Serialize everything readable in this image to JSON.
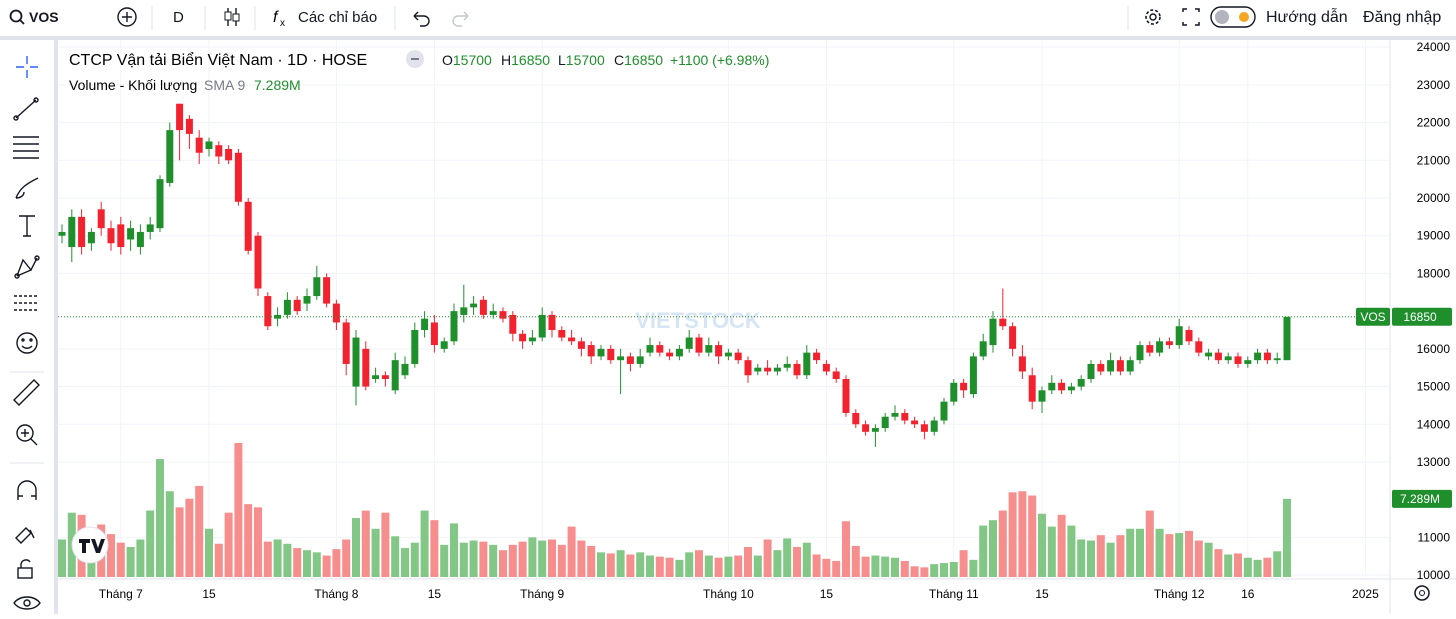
{
  "toolbar": {
    "symbol": "VOS",
    "interval": "D",
    "indicators": "Các chỉ báo",
    "guide": "Hướng dẫn",
    "login": "Đăng nhập"
  },
  "chart_data": {
    "type": "candlestick",
    "title": "CTCP Vận tải Biển Việt Nam · 1D · HOSE",
    "symbol_tag": "VOS",
    "ohlc_labels": [
      "O",
      "H",
      "L",
      "C"
    ],
    "change_label": "+1100 (+6.98%)",
    "watermark": "VIETSTOCK",
    "up_color": "#1f8f2c",
    "down_color": "#f2222f",
    "volume_up_color": "#82c785",
    "volume_down_color": "#f78e8e",
    "open": [
      19000,
      18700,
      19500,
      18800,
      19700,
      19200,
      19300,
      18900,
      18700,
      19100,
      19200,
      20400,
      22500,
      22100,
      21600,
      21300,
      21400,
      21300,
      21200,
      19900,
      19000,
      17400,
      16800,
      16900,
      17300,
      17200,
      17400,
      17900,
      17200,
      16700,
      15000,
      16000,
      15200,
      15300,
      14900,
      15300,
      15600,
      16500,
      16700,
      16000,
      16200,
      16900,
      17100,
      17300,
      16900,
      17000,
      16900,
      16400,
      16200,
      16300,
      16900,
      16500,
      16300,
      16200,
      16100,
      15800,
      16000,
      15700,
      15800,
      15600,
      15900,
      16100,
      15900,
      15800,
      16000,
      16300,
      15900,
      16100,
      15800,
      15900,
      15700,
      15400,
      15500,
      15400,
      15500,
      15600,
      15300,
      15900,
      15600,
      15400,
      15200,
      14300,
      14000,
      13800,
      13900,
      14200,
      14300,
      14100,
      14000,
      13800,
      14100,
      14600,
      15100,
      14800,
      15800,
      16100,
      16800,
      16600,
      15800,
      15300,
      14600,
      14900,
      15100,
      14900,
      15000,
      15200,
      15600,
      15400,
      15700,
      15400,
      15700,
      16100,
      15900,
      16200,
      16100,
      16500,
      16200,
      15800,
      15900,
      15700,
      15800,
      15600,
      15700,
      15900,
      15700,
      15700
    ],
    "high": [
      19300,
      19700,
      19700,
      19200,
      19900,
      19400,
      19500,
      19400,
      19300,
      19500,
      20600,
      22000,
      22500,
      22200,
      21800,
      21600,
      21500,
      21400,
      21300,
      20000,
      19100,
      17500,
      17100,
      17500,
      17400,
      17600,
      18200,
      18000,
      17300,
      16800,
      16500,
      16200,
      15500,
      15400,
      15900,
      15800,
      16700,
      17000,
      16900,
      16300,
      17200,
      17700,
      17400,
      17400,
      17200,
      17100,
      17000,
      16500,
      16500,
      17100,
      17000,
      16600,
      16500,
      16300,
      16200,
      16100,
      16100,
      16000,
      15900,
      16000,
      16300,
      16200,
      16000,
      16100,
      16500,
      16400,
      16300,
      16200,
      16000,
      16000,
      15800,
      15600,
      15700,
      15600,
      15800,
      15700,
      16100,
      16000,
      15700,
      15500,
      15300,
      14400,
      14100,
      14000,
      14300,
      14500,
      14400,
      14200,
      14100,
      14200,
      14700,
      15200,
      15200,
      15900,
      16400,
      17000,
      17600,
      16700,
      16100,
      15500,
      15000,
      15300,
      15200,
      15100,
      15300,
      15700,
      15700,
      15900,
      15800,
      15800,
      16200,
      16200,
      16300,
      16300,
      16800,
      16600,
      16300,
      16000,
      16000,
      15900,
      15900,
      15800,
      16000,
      16000,
      15900,
      16850
    ],
    "low": [
      18800,
      18300,
      18500,
      18600,
      19000,
      18600,
      18500,
      18600,
      18500,
      18900,
      19100,
      20300,
      21000,
      21300,
      20900,
      21100,
      20900,
      20900,
      19800,
      18500,
      17400,
      16500,
      16600,
      16800,
      16900,
      17000,
      17300,
      17100,
      16500,
      15300,
      14500,
      14900,
      15100,
      15000,
      14800,
      15200,
      15500,
      16300,
      15900,
      15900,
      16100,
      16700,
      16900,
      16800,
      16800,
      16700,
      16200,
      16000,
      16100,
      16200,
      16300,
      16200,
      16100,
      15800,
      15600,
      15700,
      15600,
      14800,
      15400,
      15500,
      15800,
      15800,
      15700,
      15700,
      15900,
      15800,
      15800,
      15600,
      15700,
      15600,
      15100,
      15300,
      15300,
      15300,
      15400,
      15200,
      15200,
      15600,
      15300,
      15100,
      14200,
      13900,
      13700,
      13400,
      13800,
      14100,
      14000,
      13900,
      13600,
      13700,
      14000,
      14500,
      14700,
      14700,
      15700,
      15900,
      16500,
      15800,
      15200,
      14400,
      14300,
      14800,
      14800,
      14800,
      14900,
      15100,
      15300,
      15300,
      15300,
      15300,
      15600,
      15800,
      15800,
      16000,
      16000,
      16100,
      15800,
      15700,
      15600,
      15600,
      15500,
      15500,
      15600,
      15600,
      15600,
      15700
    ],
    "close": [
      19100,
      19500,
      18700,
      19100,
      19200,
      18800,
      18700,
      19200,
      19100,
      19300,
      20500,
      21800,
      21800,
      21700,
      21200,
      21500,
      21100,
      21000,
      19900,
      18600,
      17600,
      16600,
      16900,
      17300,
      17000,
      17400,
      17900,
      17200,
      16700,
      15600,
      16300,
      15000,
      15300,
      15200,
      15700,
      15600,
      16500,
      16800,
      16100,
      16200,
      17000,
      17100,
      17200,
      16900,
      17000,
      16800,
      16400,
      16200,
      16300,
      16900,
      16500,
      16300,
      16200,
      16000,
      15800,
      16000,
      15700,
      15800,
      15600,
      15800,
      16100,
      15900,
      15800,
      16000,
      16300,
      15900,
      16100,
      15800,
      15900,
      15700,
      15300,
      15500,
      15400,
      15500,
      15600,
      15300,
      15900,
      15700,
      15400,
      15200,
      14300,
      14000,
      13800,
      13900,
      14200,
      14300,
      14100,
      14000,
      13800,
      14100,
      14600,
      15100,
      14900,
      15800,
      16200,
      16800,
      16600,
      16000,
      15400,
      14600,
      14900,
      15100,
      14900,
      15000,
      15200,
      15600,
      15400,
      15700,
      15400,
      15700,
      16100,
      15900,
      16200,
      16100,
      16600,
      16200,
      15900,
      15900,
      15700,
      15800,
      15600,
      15700,
      15900,
      15700,
      15750,
      16850
    ],
    "volume": {
      "name": "Volume - Khối lượng",
      "sma_label": "SMA 9",
      "last_label": "7.289M",
      "values": [
        3.5,
        6.0,
        5.8,
        4.2,
        4.9,
        4.0,
        3.2,
        2.8,
        3.5,
        6.2,
        11.0,
        8.0,
        6.5,
        7.3,
        8.5,
        4.5,
        3.1,
        6.0,
        12.5,
        6.8,
        6.5,
        3.3,
        3.5,
        3.1,
        2.7,
        2.5,
        2.3,
        2.0,
        2.6,
        3.5,
        5.5,
        6.2,
        4.5,
        6.0,
        3.8,
        2.7,
        3.2,
        6.2,
        5.3,
        3.0,
        5.0,
        3.2,
        3.4,
        3.3,
        3.0,
        2.5,
        3.0,
        3.3,
        3.7,
        3.4,
        3.5,
        3.0,
        4.7,
        3.4,
        2.9,
        2.3,
        2.2,
        2.5,
        2.1,
        2.3,
        2.0,
        1.9,
        1.8,
        1.6,
        2.3,
        2.5,
        2.0,
        1.8,
        1.9,
        2.0,
        2.8,
        2.0,
        3.5,
        2.5,
        3.6,
        2.8,
        3.2,
        2.1,
        1.7,
        1.5,
        5.2,
        2.9,
        1.9,
        2.0,
        1.9,
        1.8,
        1.5,
        1.0,
        0.9,
        1.2,
        1.3,
        1.4,
        2.5,
        1.6,
        4.8,
        5.3,
        6.2,
        7.9,
        8.0,
        7.6,
        5.9,
        4.7,
        5.8,
        4.8,
        3.5,
        3.4,
        3.9,
        3.2,
        3.9,
        4.5,
        4.5,
        6.2,
        4.5,
        4.0,
        4.1,
        4.3,
        3.4,
        3.2,
        2.6,
        2.1,
        2.2,
        1.8,
        1.6,
        1.8,
        2.4,
        7.289
      ]
    },
    "ylim": [
      9950,
      24190
    ],
    "yticks": [
      10000,
      11000,
      13000,
      14000,
      15000,
      16000,
      18000,
      19000,
      20000,
      21000,
      22000,
      23000,
      24000
    ],
    "xticks": [
      {
        "value": 6,
        "label": "Tháng 7"
      },
      {
        "value": 15,
        "label": "15"
      },
      {
        "value": 28,
        "label": "Tháng 8"
      },
      {
        "value": 38,
        "label": "15"
      },
      {
        "value": 49,
        "label": "Tháng 9"
      },
      {
        "value": 68,
        "label": "Tháng 10"
      },
      {
        "value": 78,
        "label": "15"
      },
      {
        "value": 91,
        "label": "Tháng 11"
      },
      {
        "value": 100,
        "label": "15"
      },
      {
        "value": 114,
        "label": "Tháng 12"
      },
      {
        "value": 121,
        "label": "16"
      },
      {
        "value": 133,
        "label": "2025"
      }
    ],
    "grid": true
  }
}
